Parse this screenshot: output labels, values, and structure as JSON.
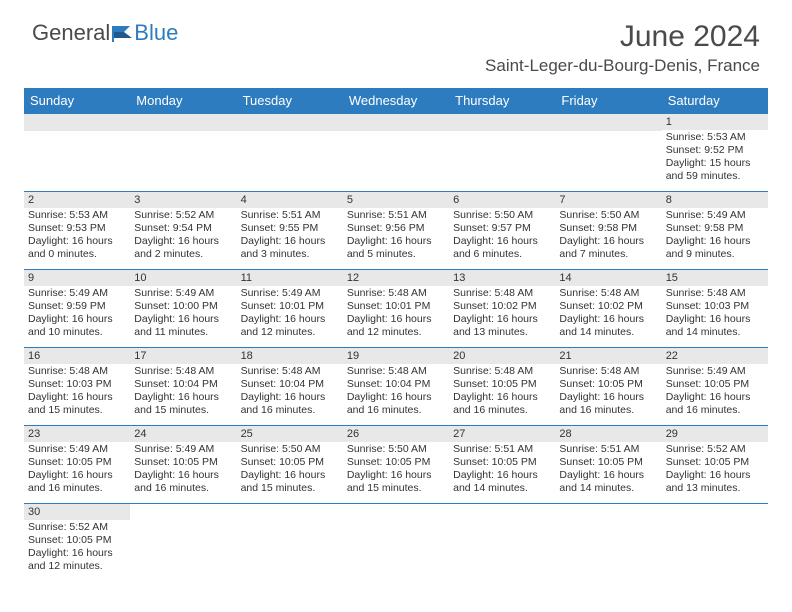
{
  "logo": {
    "general": "General",
    "blue": "Blue"
  },
  "header": {
    "month_title": "June 2024",
    "location": "Saint-Leger-du-Bourg-Denis, France"
  },
  "day_headers": [
    "Sunday",
    "Monday",
    "Tuesday",
    "Wednesday",
    "Thursday",
    "Friday",
    "Saturday"
  ],
  "colors": {
    "brand_blue": "#2e7cc0",
    "header_text": "#ffffff",
    "daynum_bg": "#e8e8e8",
    "body_text": "#333333",
    "page_bg": "#ffffff",
    "logo_gray": "#4a4a4a"
  },
  "weeks": [
    [
      {
        "day": ""
      },
      {
        "day": ""
      },
      {
        "day": ""
      },
      {
        "day": ""
      },
      {
        "day": ""
      },
      {
        "day": ""
      },
      {
        "day": "1",
        "sunrise": "Sunrise: 5:53 AM",
        "sunset": "Sunset: 9:52 PM",
        "daylight1": "Daylight: 15 hours",
        "daylight2": "and 59 minutes."
      }
    ],
    [
      {
        "day": "2",
        "sunrise": "Sunrise: 5:53 AM",
        "sunset": "Sunset: 9:53 PM",
        "daylight1": "Daylight: 16 hours",
        "daylight2": "and 0 minutes."
      },
      {
        "day": "3",
        "sunrise": "Sunrise: 5:52 AM",
        "sunset": "Sunset: 9:54 PM",
        "daylight1": "Daylight: 16 hours",
        "daylight2": "and 2 minutes."
      },
      {
        "day": "4",
        "sunrise": "Sunrise: 5:51 AM",
        "sunset": "Sunset: 9:55 PM",
        "daylight1": "Daylight: 16 hours",
        "daylight2": "and 3 minutes."
      },
      {
        "day": "5",
        "sunrise": "Sunrise: 5:51 AM",
        "sunset": "Sunset: 9:56 PM",
        "daylight1": "Daylight: 16 hours",
        "daylight2": "and 5 minutes."
      },
      {
        "day": "6",
        "sunrise": "Sunrise: 5:50 AM",
        "sunset": "Sunset: 9:57 PM",
        "daylight1": "Daylight: 16 hours",
        "daylight2": "and 6 minutes."
      },
      {
        "day": "7",
        "sunrise": "Sunrise: 5:50 AM",
        "sunset": "Sunset: 9:58 PM",
        "daylight1": "Daylight: 16 hours",
        "daylight2": "and 7 minutes."
      },
      {
        "day": "8",
        "sunrise": "Sunrise: 5:49 AM",
        "sunset": "Sunset: 9:58 PM",
        "daylight1": "Daylight: 16 hours",
        "daylight2": "and 9 minutes."
      }
    ],
    [
      {
        "day": "9",
        "sunrise": "Sunrise: 5:49 AM",
        "sunset": "Sunset: 9:59 PM",
        "daylight1": "Daylight: 16 hours",
        "daylight2": "and 10 minutes."
      },
      {
        "day": "10",
        "sunrise": "Sunrise: 5:49 AM",
        "sunset": "Sunset: 10:00 PM",
        "daylight1": "Daylight: 16 hours",
        "daylight2": "and 11 minutes."
      },
      {
        "day": "11",
        "sunrise": "Sunrise: 5:49 AM",
        "sunset": "Sunset: 10:01 PM",
        "daylight1": "Daylight: 16 hours",
        "daylight2": "and 12 minutes."
      },
      {
        "day": "12",
        "sunrise": "Sunrise: 5:48 AM",
        "sunset": "Sunset: 10:01 PM",
        "daylight1": "Daylight: 16 hours",
        "daylight2": "and 12 minutes."
      },
      {
        "day": "13",
        "sunrise": "Sunrise: 5:48 AM",
        "sunset": "Sunset: 10:02 PM",
        "daylight1": "Daylight: 16 hours",
        "daylight2": "and 13 minutes."
      },
      {
        "day": "14",
        "sunrise": "Sunrise: 5:48 AM",
        "sunset": "Sunset: 10:02 PM",
        "daylight1": "Daylight: 16 hours",
        "daylight2": "and 14 minutes."
      },
      {
        "day": "15",
        "sunrise": "Sunrise: 5:48 AM",
        "sunset": "Sunset: 10:03 PM",
        "daylight1": "Daylight: 16 hours",
        "daylight2": "and 14 minutes."
      }
    ],
    [
      {
        "day": "16",
        "sunrise": "Sunrise: 5:48 AM",
        "sunset": "Sunset: 10:03 PM",
        "daylight1": "Daylight: 16 hours",
        "daylight2": "and 15 minutes."
      },
      {
        "day": "17",
        "sunrise": "Sunrise: 5:48 AM",
        "sunset": "Sunset: 10:04 PM",
        "daylight1": "Daylight: 16 hours",
        "daylight2": "and 15 minutes."
      },
      {
        "day": "18",
        "sunrise": "Sunrise: 5:48 AM",
        "sunset": "Sunset: 10:04 PM",
        "daylight1": "Daylight: 16 hours",
        "daylight2": "and 16 minutes."
      },
      {
        "day": "19",
        "sunrise": "Sunrise: 5:48 AM",
        "sunset": "Sunset: 10:04 PM",
        "daylight1": "Daylight: 16 hours",
        "daylight2": "and 16 minutes."
      },
      {
        "day": "20",
        "sunrise": "Sunrise: 5:48 AM",
        "sunset": "Sunset: 10:05 PM",
        "daylight1": "Daylight: 16 hours",
        "daylight2": "and 16 minutes."
      },
      {
        "day": "21",
        "sunrise": "Sunrise: 5:48 AM",
        "sunset": "Sunset: 10:05 PM",
        "daylight1": "Daylight: 16 hours",
        "daylight2": "and 16 minutes."
      },
      {
        "day": "22",
        "sunrise": "Sunrise: 5:49 AM",
        "sunset": "Sunset: 10:05 PM",
        "daylight1": "Daylight: 16 hours",
        "daylight2": "and 16 minutes."
      }
    ],
    [
      {
        "day": "23",
        "sunrise": "Sunrise: 5:49 AM",
        "sunset": "Sunset: 10:05 PM",
        "daylight1": "Daylight: 16 hours",
        "daylight2": "and 16 minutes."
      },
      {
        "day": "24",
        "sunrise": "Sunrise: 5:49 AM",
        "sunset": "Sunset: 10:05 PM",
        "daylight1": "Daylight: 16 hours",
        "daylight2": "and 16 minutes."
      },
      {
        "day": "25",
        "sunrise": "Sunrise: 5:50 AM",
        "sunset": "Sunset: 10:05 PM",
        "daylight1": "Daylight: 16 hours",
        "daylight2": "and 15 minutes."
      },
      {
        "day": "26",
        "sunrise": "Sunrise: 5:50 AM",
        "sunset": "Sunset: 10:05 PM",
        "daylight1": "Daylight: 16 hours",
        "daylight2": "and 15 minutes."
      },
      {
        "day": "27",
        "sunrise": "Sunrise: 5:51 AM",
        "sunset": "Sunset: 10:05 PM",
        "daylight1": "Daylight: 16 hours",
        "daylight2": "and 14 minutes."
      },
      {
        "day": "28",
        "sunrise": "Sunrise: 5:51 AM",
        "sunset": "Sunset: 10:05 PM",
        "daylight1": "Daylight: 16 hours",
        "daylight2": "and 14 minutes."
      },
      {
        "day": "29",
        "sunrise": "Sunrise: 5:52 AM",
        "sunset": "Sunset: 10:05 PM",
        "daylight1": "Daylight: 16 hours",
        "daylight2": "and 13 minutes."
      }
    ],
    [
      {
        "day": "30",
        "sunrise": "Sunrise: 5:52 AM",
        "sunset": "Sunset: 10:05 PM",
        "daylight1": "Daylight: 16 hours",
        "daylight2": "and 12 minutes."
      },
      {
        "day": ""
      },
      {
        "day": ""
      },
      {
        "day": ""
      },
      {
        "day": ""
      },
      {
        "day": ""
      },
      {
        "day": ""
      }
    ]
  ]
}
